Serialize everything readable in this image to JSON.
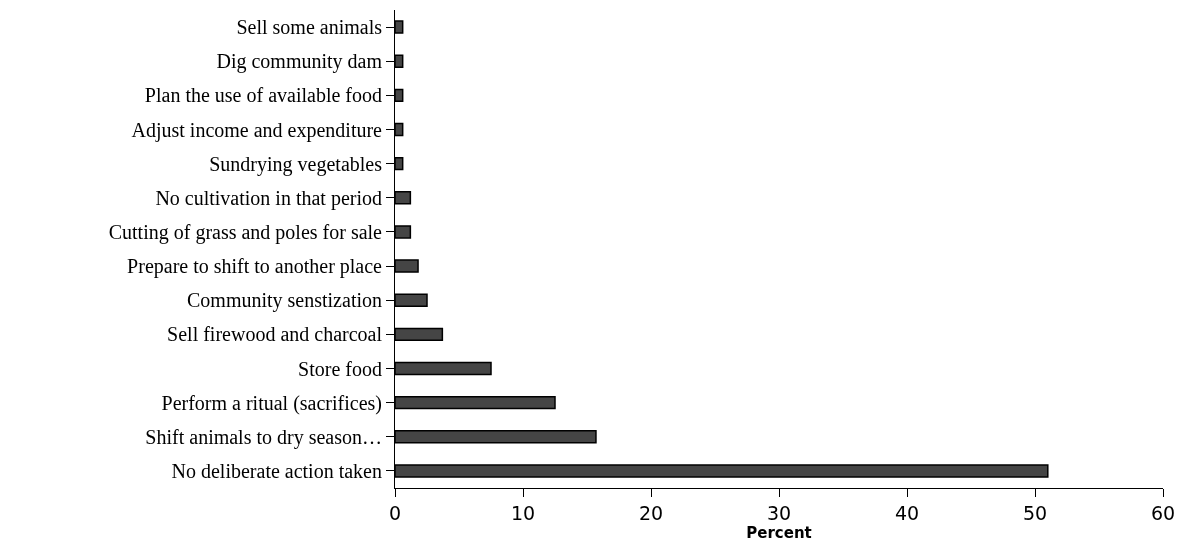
{
  "chart_data": {
    "type": "bar",
    "orientation": "horizontal",
    "xlabel": "Percent",
    "categories": [
      "Sell some animals",
      "Dig community dam",
      "Plan the use of available food",
      "Adjust income and expenditure",
      "Sundrying vegetables",
      "No cultivation in that period",
      "Cutting of grass and poles for sale",
      "Prepare to shift to another place",
      "Community senstization",
      "Sell firewood and charcoal",
      "Store food",
      "Perform a ritual (sacrifices)",
      "Shift animals to dry season…",
      "No deliberate action taken"
    ],
    "values": [
      0.6,
      0.6,
      0.6,
      0.6,
      0.6,
      1.2,
      1.2,
      1.8,
      2.5,
      3.7,
      7.5,
      12.5,
      15.7,
      51
    ],
    "color": "#454545",
    "xlim": [
      0,
      60
    ],
    "xticks": [
      0,
      10,
      20,
      30,
      40,
      50,
      60
    ],
    "grid": false
  }
}
